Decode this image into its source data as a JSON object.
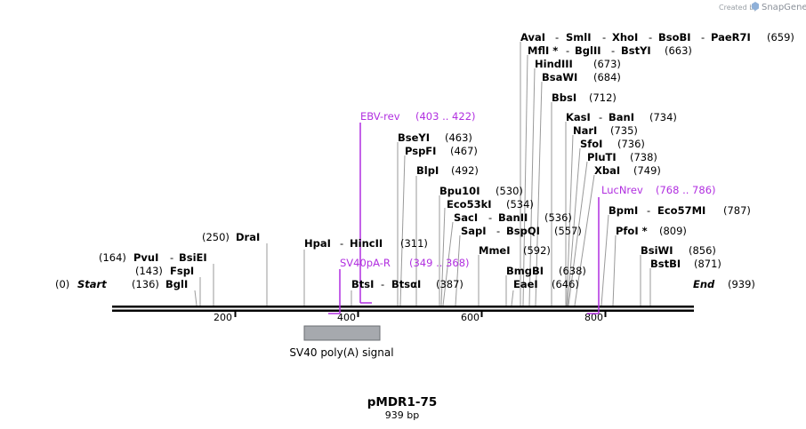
{
  "credit": {
    "created_by": "Created by",
    "brand": "SnapGene"
  },
  "map": {
    "name": "pMDR1-75",
    "length": "939 bp"
  },
  "ends": {
    "start_label": "Start",
    "start_pos": "(0)",
    "end_label": "End",
    "end_pos": "(939)"
  },
  "ticks": [
    "200",
    "400",
    "600",
    "800"
  ],
  "feature": {
    "label": "SV40 poly(A) signal",
    "color": "#a6a9ae"
  },
  "primers": {
    "ebv": {
      "name": "EBV-rev",
      "range": "(403 .. 422)"
    },
    "sv40": {
      "name": "SV40pA-R",
      "range": "(349 .. 368)"
    },
    "luc": {
      "name": "LucNrev",
      "range": "(768 .. 786)"
    }
  },
  "sites": {
    "drai": {
      "name": "DraI",
      "pos": "(250)"
    },
    "pvui": {
      "name": "PvuI",
      "name2": "BsiEI",
      "pos": "(164)"
    },
    "fspi": {
      "name": "FspI",
      "pos": "(143)"
    },
    "bgli": {
      "name": "BglI",
      "pos": "(136)"
    },
    "hpai": {
      "name": "HpaI",
      "name2": "HincII",
      "pos": "(311)"
    },
    "btsi": {
      "name": "BtsI",
      "name2": "BtsαI",
      "pos": "(387)"
    },
    "bseyi": {
      "name": "BseYI",
      "pos": "(463)"
    },
    "pspfi": {
      "name": "PspFI",
      "pos": "(467)"
    },
    "blpi": {
      "name": "BlpI",
      "pos": "(492)"
    },
    "bpu10i": {
      "name": "Bpu10I",
      "pos": "(530)"
    },
    "eco53ki": {
      "name": "Eco53kI",
      "pos": "(534)"
    },
    "saci": {
      "name": "SacI",
      "name2": "BanII",
      "pos": "(536)"
    },
    "sapi": {
      "name": "SapI",
      "name2": "BspQI",
      "pos": "(557)"
    },
    "mmei": {
      "name": "MmeI",
      "pos": "(592)"
    },
    "bmgbi": {
      "name": "BmgBI",
      "pos": "(638)"
    },
    "eaei": {
      "name": "EaeI",
      "pos": "(646)"
    },
    "avai": {
      "name": "AvaI",
      "name2": "SmlI",
      "name3": "XhoI",
      "name4": "BsoBI",
      "name5": "PaeR7I",
      "pos": "(659)"
    },
    "mfli": {
      "name": "MflI *",
      "name2": "BglII",
      "name3": "BstYI",
      "pos": "(663)"
    },
    "hindiii": {
      "name": "HindIII",
      "pos": "(673)"
    },
    "bsawi": {
      "name": "BsaWI",
      "pos": "(684)"
    },
    "bbsi": {
      "name": "BbsI",
      "pos": "(712)"
    },
    "kasi": {
      "name": "KasI",
      "name2": "BanI",
      "pos": "(734)"
    },
    "nari": {
      "name": "NarI",
      "pos": "(735)"
    },
    "sfoi": {
      "name": "SfoI",
      "pos": "(736)"
    },
    "pluti": {
      "name": "PluTI",
      "pos": "(738)"
    },
    "xbai": {
      "name": "XbaI",
      "pos": "(749)"
    },
    "bpmi": {
      "name": "BpmI",
      "name2": "Eco57MI",
      "pos": "(787)"
    },
    "pfoi": {
      "name": "PfoI *",
      "pos": "(809)"
    },
    "bsiwi": {
      "name": "BsiWI",
      "pos": "(856)"
    },
    "bstbi": {
      "name": "BstBI",
      "pos": "(871)"
    }
  },
  "colors": {
    "primer": "#b12fe0",
    "backbone": "#000000",
    "site_line": "#9a9a9a",
    "feature": "#a6a9ae"
  }
}
